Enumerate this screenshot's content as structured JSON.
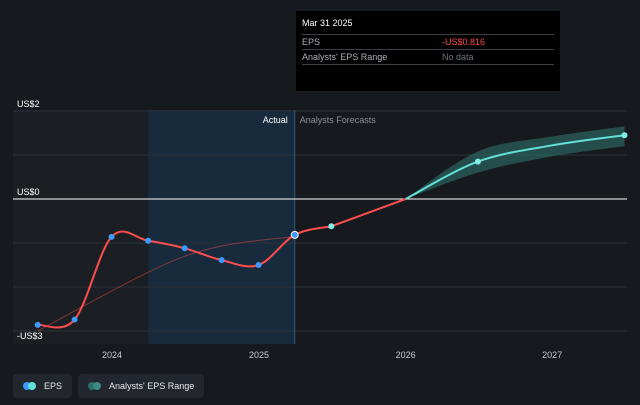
{
  "tooltip": {
    "date": "Mar 31 2025",
    "rows": [
      {
        "key": "EPS",
        "value": "-US$0.816"
      },
      {
        "key": "Analysts' EPS Range",
        "value": "No data"
      }
    ]
  },
  "legend": {
    "eps_label": "EPS",
    "range_label": "Analysts' EPS Range"
  },
  "colors": {
    "background": "#161a1f",
    "eps_actual": "#ff4d4d",
    "eps_forecast": "#62e0d8",
    "range_band": "#2f6f6a",
    "dot": "#3d9bff",
    "forecast_dot": "#7ff0e8"
  },
  "chart_data": {
    "type": "line",
    "region_labels": {
      "actual": "Actual",
      "forecast": "Analysts Forecasts"
    },
    "y_axis": {
      "min": -3,
      "max": 2,
      "tick_labels": [
        {
          "value": 2,
          "label": "US$2"
        },
        {
          "value": 0,
          "label": "US$0"
        },
        {
          "value": -3,
          "label": "-US$3"
        }
      ]
    },
    "x_axis": {
      "tick_labels": [
        "2024",
        "2025",
        "2026",
        "2027"
      ],
      "tick_dates": [
        "2024-01-01",
        "2025-01-01",
        "2026-01-01",
        "2027-01-01"
      ]
    },
    "highlight_range": {
      "start": "2024-03-31",
      "end": "2025-03-31"
    },
    "present_date": "2025-03-31",
    "series": [
      {
        "name": "EPS",
        "role": "actual",
        "points": [
          {
            "date": "2023-06-30",
            "value": -2.86
          },
          {
            "date": "2023-09-30",
            "value": -2.74
          },
          {
            "date": "2023-12-31",
            "value": -0.86
          },
          {
            "date": "2024-03-31",
            "value": -0.95
          },
          {
            "date": "2024-06-30",
            "value": -1.12
          },
          {
            "date": "2024-09-30",
            "value": -1.39
          },
          {
            "date": "2024-12-31",
            "value": -1.5
          },
          {
            "date": "2025-03-31",
            "value": -0.816
          },
          {
            "date": "2025-06-30",
            "value": -0.62
          }
        ]
      },
      {
        "name": "Trend",
        "role": "trend",
        "points": [
          {
            "date": "2023-06-30",
            "value": -3.0
          },
          {
            "date": "2024-06-30",
            "value": -1.3
          },
          {
            "date": "2025-03-31",
            "value": -0.85
          }
        ]
      },
      {
        "name": "EPS Forecast",
        "role": "forecast",
        "points": [
          {
            "date": "2025-06-30",
            "value": -0.62
          },
          {
            "date": "2026-01-01",
            "value": 0.0
          },
          {
            "date": "2026-06-30",
            "value": 0.85
          },
          {
            "date": "2027-01-01",
            "value": 1.22
          },
          {
            "date": "2027-06-30",
            "value": 1.45
          }
        ],
        "highlight_points": [
          {
            "date": "2026-06-30",
            "value": 0.85
          }
        ]
      }
    ],
    "range_band": [
      {
        "date": "2026-01-01",
        "low": 0.0,
        "high": 0.0
      },
      {
        "date": "2026-06-30",
        "low": 0.6,
        "high": 1.08
      },
      {
        "date": "2027-01-01",
        "low": 0.97,
        "high": 1.42
      },
      {
        "date": "2027-06-30",
        "low": 1.2,
        "high": 1.65
      }
    ]
  }
}
